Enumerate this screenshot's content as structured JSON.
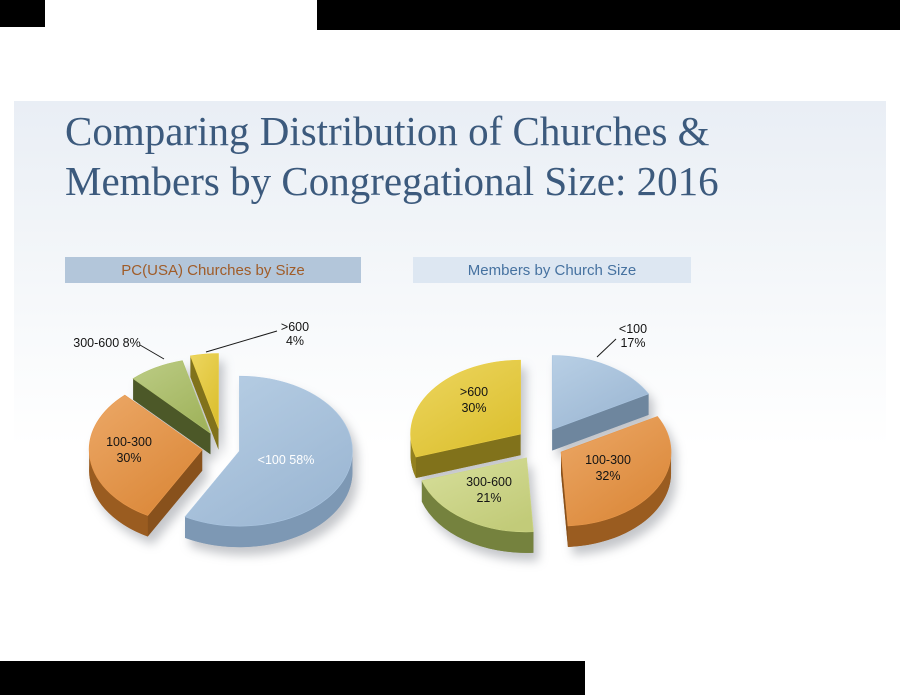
{
  "slide": {
    "title_line1": "Comparing Distribution of Churches &",
    "title_line2": "Members by Congregational Size: 2016",
    "title_color": "#3c5a7d"
  },
  "chart_data": [
    {
      "type": "pie",
      "title": "PC(USA) Churches by Size",
      "header": {
        "bg": "#b3c6da",
        "text_color": "#a05c28"
      },
      "unit": "%",
      "start_angle_deg": -90,
      "direction": "clockwise",
      "exploded": true,
      "categories": [
        "<100",
        "100-300",
        "300-600",
        ">600"
      ],
      "values": [
        58,
        30,
        8,
        4
      ],
      "slices": [
        {
          "label": "<100",
          "value": 58,
          "display": "<100 58%",
          "color": "#a4c1de",
          "side_color": "#7d98b4",
          "label_placement": "inside",
          "label_color": "#ffffff",
          "two_line": false
        },
        {
          "label": "100-300",
          "value": 30,
          "display": "100-300 30%",
          "color": "#e68f3c",
          "side_color": "#9a5c20",
          "label_placement": "inside",
          "label_color": "#141414",
          "two_line": true
        },
        {
          "label": "300-600",
          "value": 8,
          "display": "300-600 8%",
          "color": "#a9bd62",
          "side_color": "#56642d",
          "label_placement": "outside",
          "label_color": "#141414",
          "two_line": false
        },
        {
          "label": ">600",
          "value": 4,
          "display": ">600 4%",
          "color": "#e8ca33",
          "side_color": "#93811f",
          "label_placement": "outside",
          "label_color": "#141414",
          "two_line": true
        }
      ]
    },
    {
      "type": "pie",
      "title": "Members by Church Size",
      "header": {
        "bg": "#dde7f2",
        "text_color": "#4672a0"
      },
      "unit": "%",
      "start_angle_deg": -90,
      "direction": "clockwise",
      "exploded": true,
      "categories": [
        "<100",
        "100-300",
        "300-600",
        ">600"
      ],
      "values": [
        17,
        32,
        21,
        30
      ],
      "slices": [
        {
          "label": "<100",
          "value": 17,
          "display": "<100 17%",
          "color": "#a4c1de",
          "side_color": "#7d98b4",
          "label_placement": "outside",
          "label_color": "#141414",
          "two_line": true
        },
        {
          "label": "100-300",
          "value": 32,
          "display": "100-300 32%",
          "color": "#e68f3c",
          "side_color": "#9a5c20",
          "label_placement": "inside",
          "label_color": "#141414",
          "two_line": true
        },
        {
          "label": "300-600",
          "value": 21,
          "display": "300-600 21%",
          "color": "#ccd67f",
          "side_color": "#75823e",
          "label_placement": "inside",
          "label_color": "#141414",
          "two_line": true
        },
        {
          "label": ">600",
          "value": 30,
          "display": ">600 30%",
          "color": "#e8ca33",
          "side_color": "#93811f",
          "label_placement": "inside",
          "label_color": "#141414",
          "two_line": true
        }
      ]
    }
  ]
}
